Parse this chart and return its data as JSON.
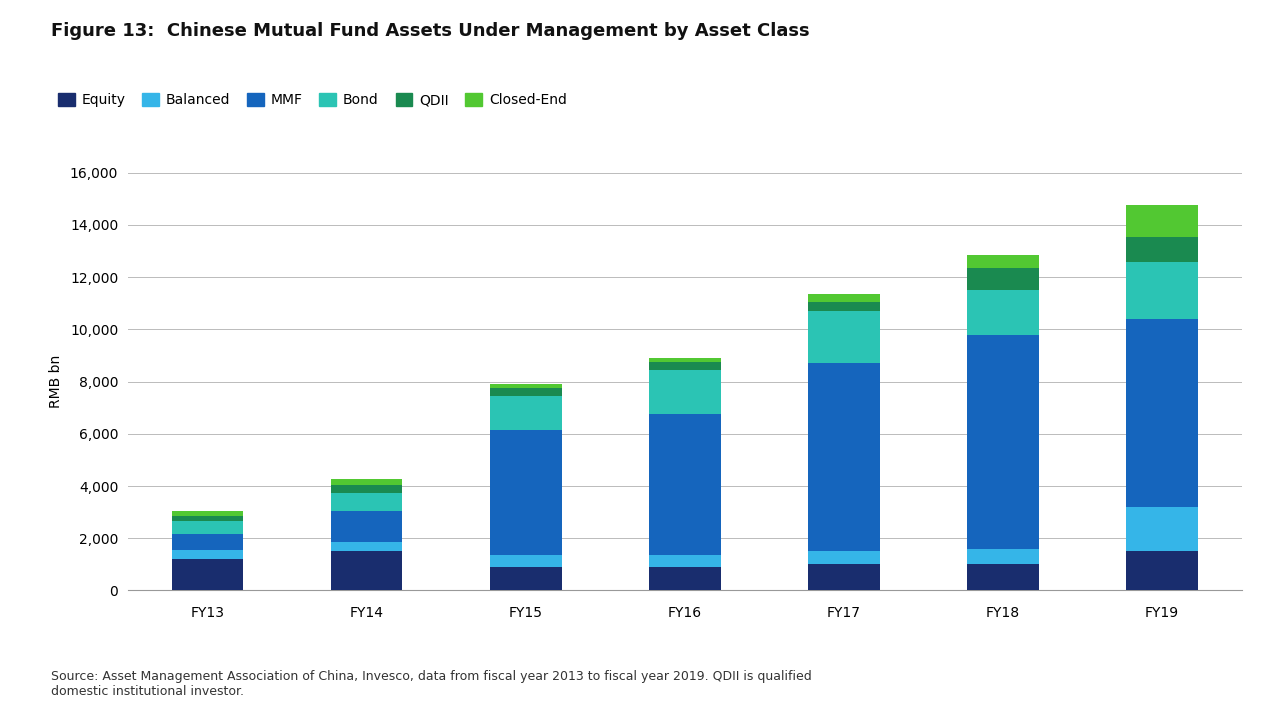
{
  "title": "Figure 13:  Chinese Mutual Fund Assets Under Management by Asset Class",
  "ylabel": "RMB bn",
  "categories": [
    "FY13",
    "FY14",
    "FY15",
    "FY16",
    "FY17",
    "FY18",
    "FY19"
  ],
  "series": {
    "Equity": [
      1200,
      1500,
      900,
      900,
      1000,
      1000,
      1500
    ],
    "Balanced": [
      350,
      350,
      450,
      450,
      500,
      600,
      1700
    ],
    "MMF": [
      600,
      1200,
      4800,
      5400,
      7200,
      8200,
      7200
    ],
    "Bond": [
      500,
      700,
      1300,
      1700,
      2000,
      1700,
      2200
    ],
    "QDII": [
      200,
      300,
      300,
      300,
      350,
      850,
      950
    ],
    "Closed-End": [
      200,
      200,
      150,
      150,
      300,
      500,
      1200
    ]
  },
  "colors": {
    "Equity": "#192d6e",
    "Balanced": "#35b5e8",
    "MMF": "#1565bd",
    "Bond": "#2bc4b4",
    "QDII": "#1a8a50",
    "Closed-End": "#52c832"
  },
  "ylim": [
    0,
    16000
  ],
  "yticks": [
    0,
    2000,
    4000,
    6000,
    8000,
    10000,
    12000,
    14000,
    16000
  ],
  "source_text": "Source: Asset Management Association of China, Invesco, data from fiscal year 2013 to fiscal year 2019. QDII is qualified\ndomestic institutional investor.",
  "background_color": "#ffffff",
  "title_fontsize": 13,
  "axis_fontsize": 10,
  "tick_fontsize": 10,
  "legend_fontsize": 10
}
